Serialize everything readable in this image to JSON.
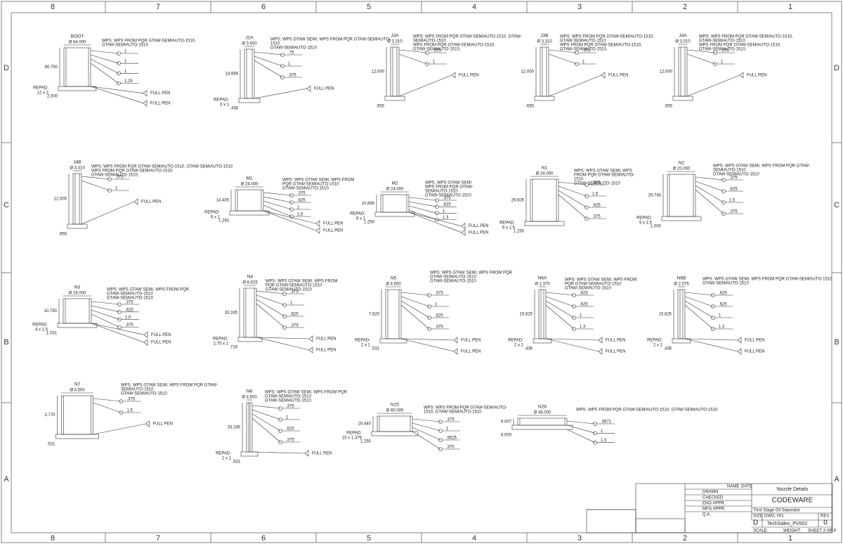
{
  "border": {
    "columns": [
      "8",
      "7",
      "6",
      "5",
      "4",
      "3",
      "2",
      "1"
    ],
    "rows": [
      "D",
      "C",
      "B",
      "A"
    ]
  },
  "details": [
    {
      "name": "BOOT",
      "dims": [
        "Ø 64.000",
        "80.750",
        "2.000",
        "REPAD:",
        "12 x 2"
      ],
      "wps": [
        "WPS: WPS FROM PQR GTAW-SEMIAUTO-1510,",
        "GTAW-SEMIAUTO-1510"
      ],
      "welds": [
        "1",
        "1",
        "1",
        "1.25",
        "FULL PEN",
        "FULL PEN"
      ]
    },
    {
      "name": "J2A",
      "dims": [
        "Ø 3.500",
        "14.669",
        ".438",
        "REPAD:",
        "3 x 1"
      ],
      "wps": [
        "WPS: WPS GTAW SEMI, WPS FROM PQR GTAW-SEMIAUTO-",
        "1510",
        "GTAW-SEMIAUTO-1510"
      ],
      "welds": [
        ".75",
        "1",
        ".375",
        "FULL PEN"
      ]
    },
    {
      "name": "J3A",
      "dims": [
        "Ø 3.310",
        "12.000",
        ".655"
      ],
      "wps": [
        "WPS: WPS FROM PQR GTAW-SEMIAUTO-1510, GTAW-",
        "SEMIAUTO-1510",
        "WPS FROM PQR GTAW-SEMIAUTO-1510,",
        "GTAW-SEMIAUTO-1510,"
      ],
      "welds": [
        ".375",
        "1",
        "FULL PEN"
      ]
    },
    {
      "name": "J3B",
      "dims": [
        "Ø 3.310",
        "12.000",
        ".655"
      ],
      "wps": [
        "WPS: WPS FROM PQR GTAW-SEMIAUTO-1510,",
        "GTAW-SEMIAUTO-1510",
        "WPS FROM PQR GTAW-SEMIAUTO-1510,",
        "GTAW-SEMIAUTO-1510,"
      ],
      "welds": [
        ".375",
        "1",
        "FULL PEN"
      ]
    },
    {
      "name": "J4A",
      "dims": [
        "Ø 3.310",
        "12.000",
        ".655"
      ],
      "wps": [
        "WPS: WPS FROM PQR GTAW-SEMIAUTO-1510,",
        "GTAW-SEMIAUTO-1510",
        "WPS FROM PQR GTAW-SEMIAUTO-1510,",
        "GTAW-SEMIAUTO-1510,"
      ],
      "welds": [
        ".375",
        "1",
        "FULL PEN"
      ]
    },
    {
      "name": "J4B",
      "dims": [
        "Ø 3.310",
        "12.000",
        ".655"
      ],
      "wps": [
        "WPS: WPS FROM PQR GTAW-SEMIAUTO-1510, GTAW-SEMIAUTO-1510",
        "WPS FROM PQR GTAW-SEMIAUTO-1510,",
        "GTAW-SEMIAUTO-1510,"
      ],
      "welds": [
        ".375",
        "1",
        "FULL PEN"
      ]
    },
    {
      "name": "M1",
      "dims": [
        "Ø 24.000",
        "14.405",
        "1.250",
        "REPAD:",
        "6 x 1"
      ],
      "wps": [
        "WPS: WPS GTAW SEMI, WPS FROM",
        "PQR GTAW-SEMIAUTO-1510",
        "GTAW-SEMIAUTO-1510"
      ],
      "welds": [
        ".375",
        ".625",
        "1",
        "1.5",
        "FULL PEN",
        "FULL PEN"
      ]
    },
    {
      "name": "M2",
      "dims": [
        "Ø 24.000",
        "10.858",
        "1.250",
        "REPAD:",
        "6 x 1"
      ],
      "wps": [
        "WPS: WPS GTAW SEMI",
        "WPS FROM PQR GTAW-",
        "SEMIAUTO-1510",
        "GTAW-SEMIAUTO-1510"
      ],
      "welds": [
        ".375",
        ".625",
        "1",
        "1.3",
        "FULL PEN",
        "FULL PEN"
      ]
    },
    {
      "name": "N1",
      "dims": [
        "Ø 24.000",
        "29.505",
        "1.250",
        "REPAD:",
        "6 x 1.5"
      ],
      "wps": [
        "WPS: WPS GTAW SEMI, WPS",
        "FROM PQR GTAW-SEMIAUTO-",
        "1510",
        "GTAW-SEMIAUTO-1510"
      ],
      "welds": [
        ".375",
        "1.5",
        ".625",
        ".375"
      ]
    },
    {
      "name": "N2",
      "dims": [
        "Ø 20.000",
        "29.745",
        "1.000",
        "REPAD:",
        "5 x 1.5"
      ],
      "wps": [
        "WPS: WPS GTAW SEMI, WPS FROM PQR GTAW-",
        "SEMIAUTO-1510",
        "GTAW-SEMIAUTO-1510"
      ],
      "welds": [
        ".375",
        ".625",
        "1.5",
        ".375"
      ]
    },
    {
      "name": "N3",
      "dims": [
        "Ø 16.000",
        "10.750",
        "1.031",
        "REPAD:",
        "4 x 1.5"
      ],
      "wps": [
        "WPS: WPS GTAW SEMI, WPS FROM PQR",
        "GTAW-SEMIAUTO-1510",
        "GTAW-SEMIAUTO-1510"
      ],
      "welds": [
        ".375",
        ".625",
        "1.5",
        ".375",
        "FULL PEN",
        "FULL PEN"
      ]
    },
    {
      "name": "N4",
      "dims": [
        "Ø 8.625",
        "33.245",
        ".719",
        "REPAD:",
        "2.75 x 1"
      ],
      "wps": [
        "WPS: WPS GTAW SEMI, WPS FROM",
        "PQR GTAW-SEMIAUTO-1510",
        "GTAW-SEMIAUTO-1510"
      ],
      "welds": [
        ".375",
        "1",
        ".625",
        ".375",
        "FULL PEN",
        "FULL PEN"
      ]
    },
    {
      "name": "N5",
      "dims": [
        "Ø 4.500",
        "7.620",
        ".531",
        "REPAD:",
        "2 x 1"
      ],
      "wps": [
        "WPS: WPS GTAW SEMI, WPS FROM PQR",
        "GTAW-SEMIAUTO-1510",
        "GTAW-SEMIAUTO-1510"
      ],
      "welds": [
        ".375",
        "1",
        ".625",
        ".375",
        "FULL PEN",
        "FULL PEN"
      ]
    },
    {
      "name": "N6A",
      "dims": [
        "Ø 2.375",
        "15.625",
        ".436",
        "REPAD:",
        "2 x 1"
      ],
      "wps": [
        "WPS: WPS GTAW SEMI, WPS FROM",
        "PQR GTAW-SEMIAUTO-1510",
        "GTAW-SEMIAUTO-1510"
      ],
      "welds": [
        ".625",
        ".625",
        "1",
        "1.3",
        "FULL PEN",
        "FULL PEN"
      ]
    },
    {
      "name": "N6B",
      "dims": [
        "Ø 2.375",
        "15.625",
        ".436",
        "REPAD:",
        "2 x 1"
      ],
      "wps": [
        "WPS: WPS GTAW SEMI, WPS FROM PQR GTAW-SEMIAUTO-1510",
        "GTAW-SEMIAUTO-1510"
      ],
      "welds": [
        ".625",
        ".625",
        "1",
        "1.3",
        "FULL PEN",
        "FULL PEN"
      ]
    },
    {
      "name": "N7",
      "dims": [
        "Ø 4.500",
        "2.770",
        ".531"
      ],
      "wps": [
        "WPS: WPS GTAW SEMI, WPS FROM PQR GTAW-",
        "SEMIAUTO-1510",
        "GTAW-SEMIAUTO-1510"
      ],
      "welds": [
        ".375",
        "1.5",
        "FULL PEN"
      ]
    },
    {
      "name": "N8",
      "dims": [
        "Ø 4.500",
        "33.245",
        ".531",
        "REPAD:",
        "2 x 1"
      ],
      "wps": [
        "WPS: WPS GTAW SEMI, WPS FROM PQR",
        "GTAW-SEMIAUTO-1510",
        "GTAW-SEMIAUTO-1510"
      ],
      "welds": [
        ".375",
        "1",
        ".625",
        ".375",
        "FULL PEN"
      ]
    },
    {
      "name": "N25",
      "dims": [
        "Ø 60.000",
        "20.440",
        "1.250",
        "REPAD:",
        "15 x 1.375"
      ],
      "wps": [
        "WPS: WPS FROM PQR GTAW-SEMIAUTO-",
        "1510, GTAW-SEMIAUTO-1510"
      ],
      "welds": [
        ".375",
        "1",
        ".5625",
        ".375"
      ]
    },
    {
      "name": "N26",
      "dims": [
        "Ø 36.000",
        "6.007",
        "6.000"
      ],
      "wps": [
        "WPS: WPS FROM PQR GTAW-SEMIAUTO-1510, GTAW-SEMIAUTO-1510"
      ],
      "welds": [
        ".3571",
        "1",
        "1.3"
      ]
    }
  ],
  "title_block": {
    "title": "Nozzle Details",
    "company": "CODEWARE",
    "description": "First Stage Oil Seperator",
    "size_label": "SIZE",
    "dwg_label": "DWG. NO.",
    "rev_label": "REV",
    "size": "D",
    "dwg_no": "TechSales_PV002",
    "rev": "0",
    "scale": "SCALE:",
    "weight": "WEIGHT:",
    "sheet": "SHEET 3 OF 6",
    "name_col": "NAME",
    "date_col": "DATE",
    "rows": [
      "DRAWN",
      "CHECKED",
      "ENG APPR.",
      "MFG APPR.",
      "Q.A."
    ]
  }
}
